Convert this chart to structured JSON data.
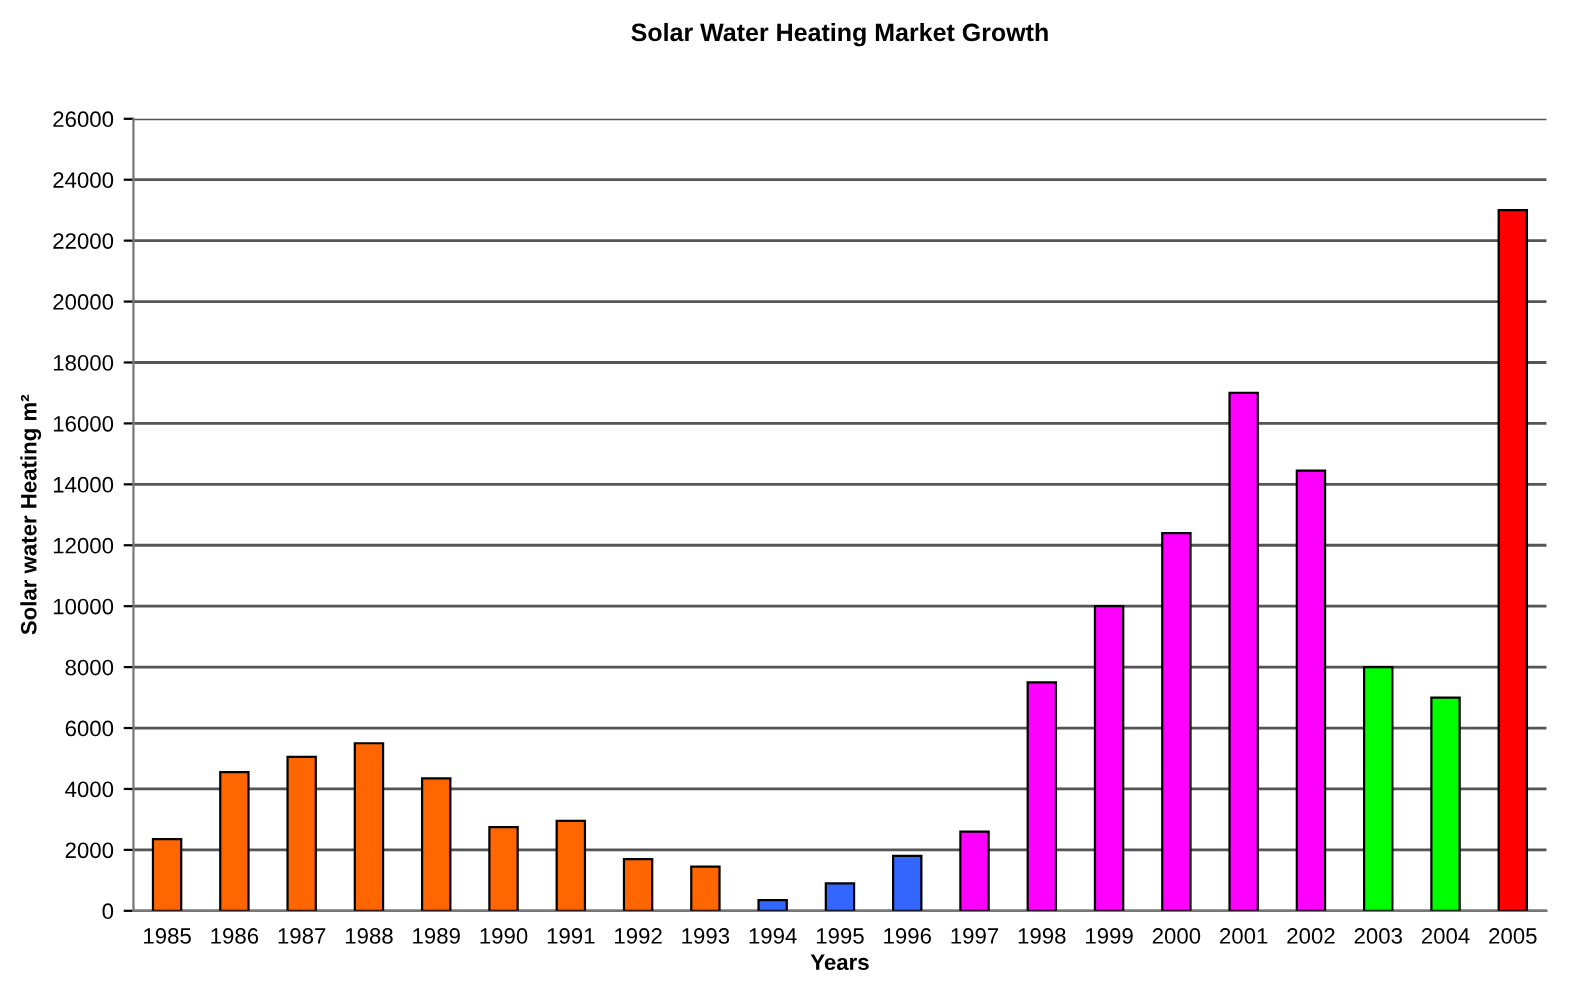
{
  "chart_data": {
    "type": "bar",
    "title": "Solar Water Heating Market Growth",
    "xlabel": "Years",
    "ylabel": "Solar water Heating m²",
    "categories": [
      "1985",
      "1986",
      "1987",
      "1988",
      "1989",
      "1990",
      "1991",
      "1992",
      "1993",
      "1994",
      "1995",
      "1996",
      "1997",
      "1998",
      "1999",
      "2000",
      "2001",
      "2002",
      "2003",
      "2004",
      "2005"
    ],
    "values": [
      2350,
      4550,
      5050,
      5500,
      4350,
      2750,
      2950,
      1700,
      1450,
      350,
      900,
      1800,
      2600,
      7500,
      10000,
      12400,
      17000,
      14450,
      8000,
      7000,
      23000
    ],
    "colors": [
      "#ff6600",
      "#ff6600",
      "#ff6600",
      "#ff6600",
      "#ff6600",
      "#ff6600",
      "#ff6600",
      "#ff6600",
      "#ff6600",
      "#3366ff",
      "#3366ff",
      "#3366ff",
      "#ff00ff",
      "#ff00ff",
      "#ff00ff",
      "#ff00ff",
      "#ff00ff",
      "#ff00ff",
      "#00ff00",
      "#00ff00",
      "#ff0000"
    ],
    "ylim": [
      0,
      26000
    ],
    "yticks": [
      0,
      2000,
      4000,
      6000,
      8000,
      10000,
      12000,
      14000,
      16000,
      18000,
      20000,
      22000,
      24000,
      26000
    ],
    "grid": "y",
    "legend": false
  }
}
